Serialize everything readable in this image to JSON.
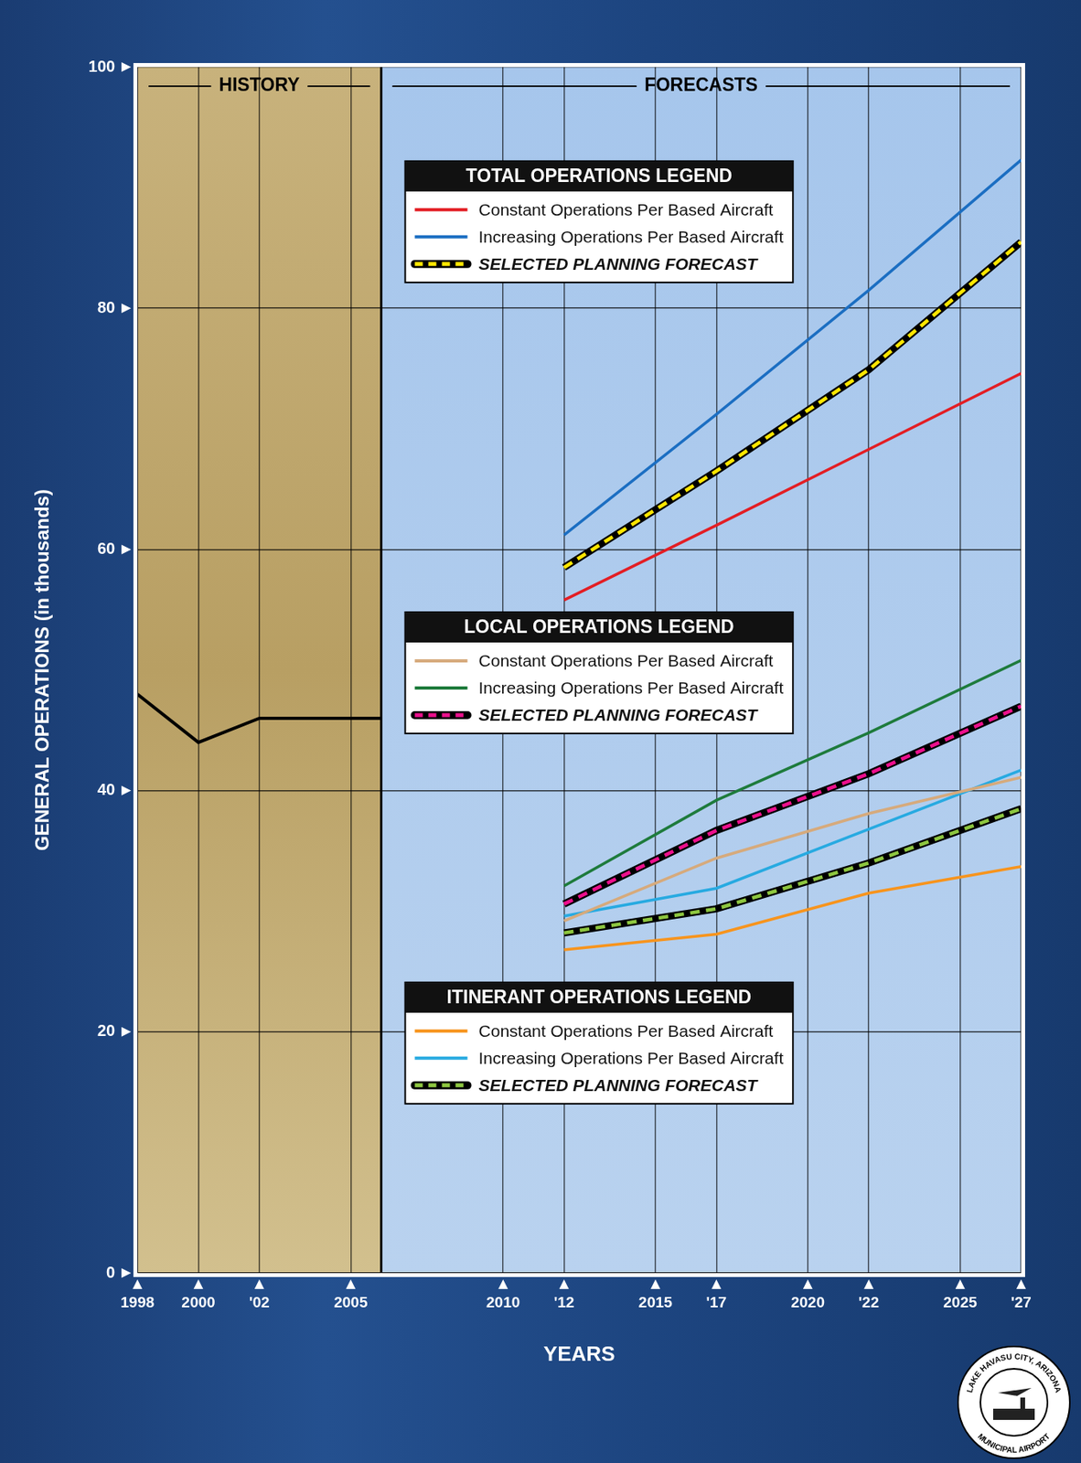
{
  "chart_data": {
    "type": "line",
    "x_label": "YEARS",
    "y_label": "GENERAL OPERATIONS (in thousands)",
    "sections": [
      {
        "label": "HISTORY",
        "from": 1998,
        "to": 2006
      },
      {
        "label": "FORECASTS",
        "from": 2006,
        "to": 2027
      }
    ],
    "history": {
      "x": [
        1998,
        2000,
        2002,
        2006
      ],
      "values": [
        48,
        44,
        46,
        46
      ],
      "color": "#000000"
    },
    "x": [
      2012,
      2017,
      2022,
      2027
    ],
    "series": [
      {
        "name": "Constant Operations Per Based Aircraft",
        "group": "TOTAL OPERATIONS LEGEND",
        "color": "#e31e24",
        "line_style": "solid",
        "values": [
          55.8,
          62.0,
          68.3,
          74.6
        ]
      },
      {
        "name": "Increasing Operations Per Based Aircraft",
        "group": "TOTAL OPERATIONS LEGEND",
        "color": "#1b6ec2",
        "line_style": "solid",
        "values": [
          61.2,
          71.2,
          81.5,
          92.3
        ]
      },
      {
        "name": "SELECTED PLANNING FORECAST",
        "group": "TOTAL OPERATIONS LEGEND",
        "color": "#ffe600",
        "line_style": "dashed",
        "values": [
          58.5,
          66.5,
          74.9,
          85.5
        ]
      },
      {
        "name": "Constant Operations Per Based Aircraft",
        "group": "LOCAL OPERATIONS LEGEND",
        "color": "#d6aa7c",
        "line_style": "solid",
        "values": [
          29.2,
          34.4,
          38.1,
          41.1
        ]
      },
      {
        "name": "Increasing Operations Per Based Aircraft",
        "group": "LOCAL OPERATIONS LEGEND",
        "color": "#1e7b3c",
        "line_style": "solid",
        "values": [
          32.1,
          39.2,
          44.8,
          50.8
        ]
      },
      {
        "name": "SELECTED PLANNING FORECAST",
        "group": "LOCAL OPERATIONS LEGEND",
        "color": "#ec0f8c",
        "line_style": "dashed",
        "values": [
          30.6,
          36.7,
          41.4,
          47.0
        ]
      },
      {
        "name": "Constant Operations Per Based Aircraft",
        "group": "ITINERANT OPERATIONS LEGEND",
        "color": "#f7941d",
        "line_style": "solid",
        "values": [
          26.8,
          28.1,
          31.5,
          33.7
        ]
      },
      {
        "name": "Increasing Operations Per Based Aircraft",
        "group": "ITINERANT OPERATIONS LEGEND",
        "color": "#27aae1",
        "line_style": "solid",
        "values": [
          29.6,
          31.9,
          36.8,
          41.7
        ]
      },
      {
        "name": "SELECTED PLANNING FORECAST",
        "group": "ITINERANT OPERATIONS LEGEND",
        "color": "#8dc63f",
        "line_style": "dashed",
        "values": [
          28.2,
          30.2,
          34.0,
          38.5
        ]
      }
    ],
    "xlim": [
      1998,
      2027
    ],
    "xticks": [
      1998,
      2000,
      {
        "value": 2002,
        "label": "'02"
      },
      2005,
      2010,
      {
        "value": 2012,
        "label": "'12"
      },
      2015,
      {
        "value": 2017,
        "label": "'17"
      },
      2020,
      {
        "value": 2022,
        "label": "'22"
      },
      2025,
      {
        "value": 2027,
        "label": "'27"
      }
    ],
    "ylim": [
      0,
      100
    ],
    "yticks": [
      0,
      20,
      40,
      60,
      80,
      100
    ],
    "grid": true,
    "legend": "inside",
    "logo": [
      "LAKE HAVASU CITY, ARIZONA",
      "MUNICIPAL AIRPORT"
    ]
  }
}
